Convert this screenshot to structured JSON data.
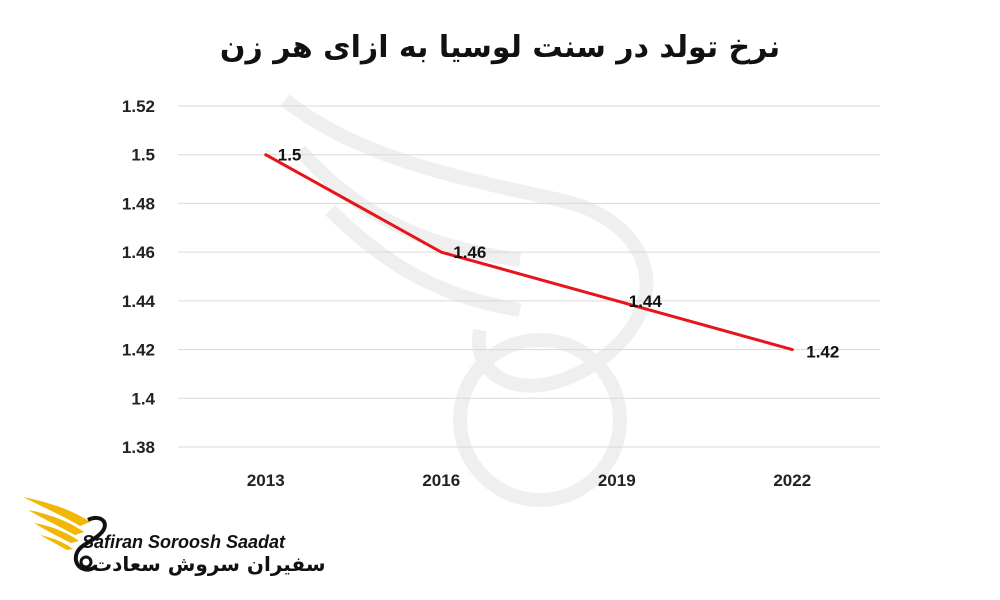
{
  "chart_data": {
    "type": "line",
    "title": "نرخ تولد در سنت لوسیا به ازای هر زن",
    "categories": [
      "2013",
      "2016",
      "2019",
      "2022"
    ],
    "series": [
      {
        "values": [
          1.5,
          1.46,
          1.44,
          1.42
        ],
        "color": "#e8141b"
      }
    ],
    "data_labels": [
      "1.5",
      "1.46",
      "1.44",
      "1.42"
    ],
    "y_ticks": [
      "1.38",
      "1.4",
      "1.42",
      "1.44",
      "1.46",
      "1.48",
      "1.5",
      "1.52"
    ],
    "ylim": [
      1.38,
      1.52
    ],
    "grid": true,
    "legend": "none"
  },
  "watermark": {
    "brand_en": "Safiran Soroosh Saadat",
    "brand_fa": "سفیران سروش سعادت",
    "logo_icon": "wing-swan-logo-icon",
    "logo_color": "#f2b705"
  }
}
